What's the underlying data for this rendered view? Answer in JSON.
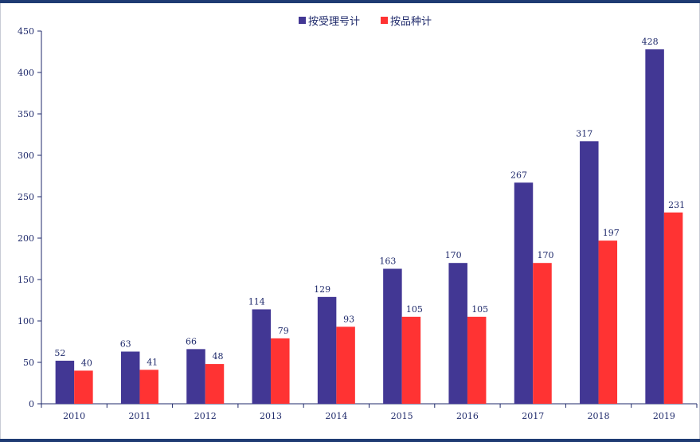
{
  "chart_data": {
    "type": "bar",
    "categories": [
      "2010",
      "2011",
      "2012",
      "2013",
      "2014",
      "2015",
      "2016",
      "2017",
      "2018",
      "2019"
    ],
    "series": [
      {
        "name": "按受理号计",
        "color": "#423794",
        "values": [
          52,
          63,
          66,
          114,
          129,
          163,
          170,
          267,
          317,
          428
        ]
      },
      {
        "name": "按品种计",
        "color": "#ff3333",
        "values": [
          40,
          41,
          48,
          79,
          93,
          105,
          105,
          170,
          197,
          231
        ]
      }
    ],
    "yticks": [
      "0",
      "50",
      "100",
      "150",
      "200",
      "250",
      "300",
      "350",
      "400",
      "450"
    ],
    "ylim": [
      0,
      450
    ],
    "grid": false,
    "legend": "top-center",
    "title": "",
    "xlabel": "",
    "ylabel": ""
  }
}
